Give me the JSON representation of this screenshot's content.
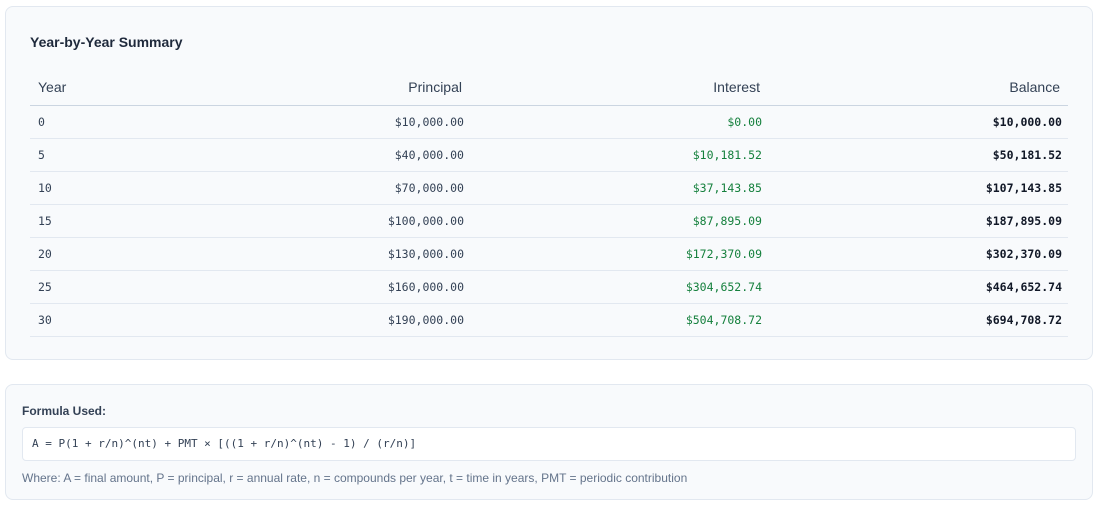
{
  "summary": {
    "title": "Year-by-Year Summary",
    "columns": {
      "year": "Year",
      "principal": "Principal",
      "interest": "Interest",
      "balance": "Balance"
    },
    "rows": [
      {
        "year": "0",
        "principal": "$10,000.00",
        "interest": "$0.00",
        "balance": "$10,000.00"
      },
      {
        "year": "5",
        "principal": "$40,000.00",
        "interest": "$10,181.52",
        "balance": "$50,181.52"
      },
      {
        "year": "10",
        "principal": "$70,000.00",
        "interest": "$37,143.85",
        "balance": "$107,143.85"
      },
      {
        "year": "15",
        "principal": "$100,000.00",
        "interest": "$87,895.09",
        "balance": "$187,895.09"
      },
      {
        "year": "20",
        "principal": "$130,000.00",
        "interest": "$172,370.09",
        "balance": "$302,370.09"
      },
      {
        "year": "25",
        "principal": "$160,000.00",
        "interest": "$304,652.74",
        "balance": "$464,652.74"
      },
      {
        "year": "30",
        "principal": "$190,000.00",
        "interest": "$504,708.72",
        "balance": "$694,708.72"
      }
    ]
  },
  "formula": {
    "label": "Formula Used:",
    "expression": "A = P(1 + r/n)^(nt) + PMT × [((1 + r/n)^(nt) - 1) / (r/n)]",
    "note": "Where: A = final amount, P = principal, r = annual rate, n = compounds per year, t = time in years, PMT = periodic contribution"
  },
  "colors": {
    "interest_text": "#15803d",
    "card_background": "#f8fafc",
    "card_border": "#e2e8f0"
  }
}
